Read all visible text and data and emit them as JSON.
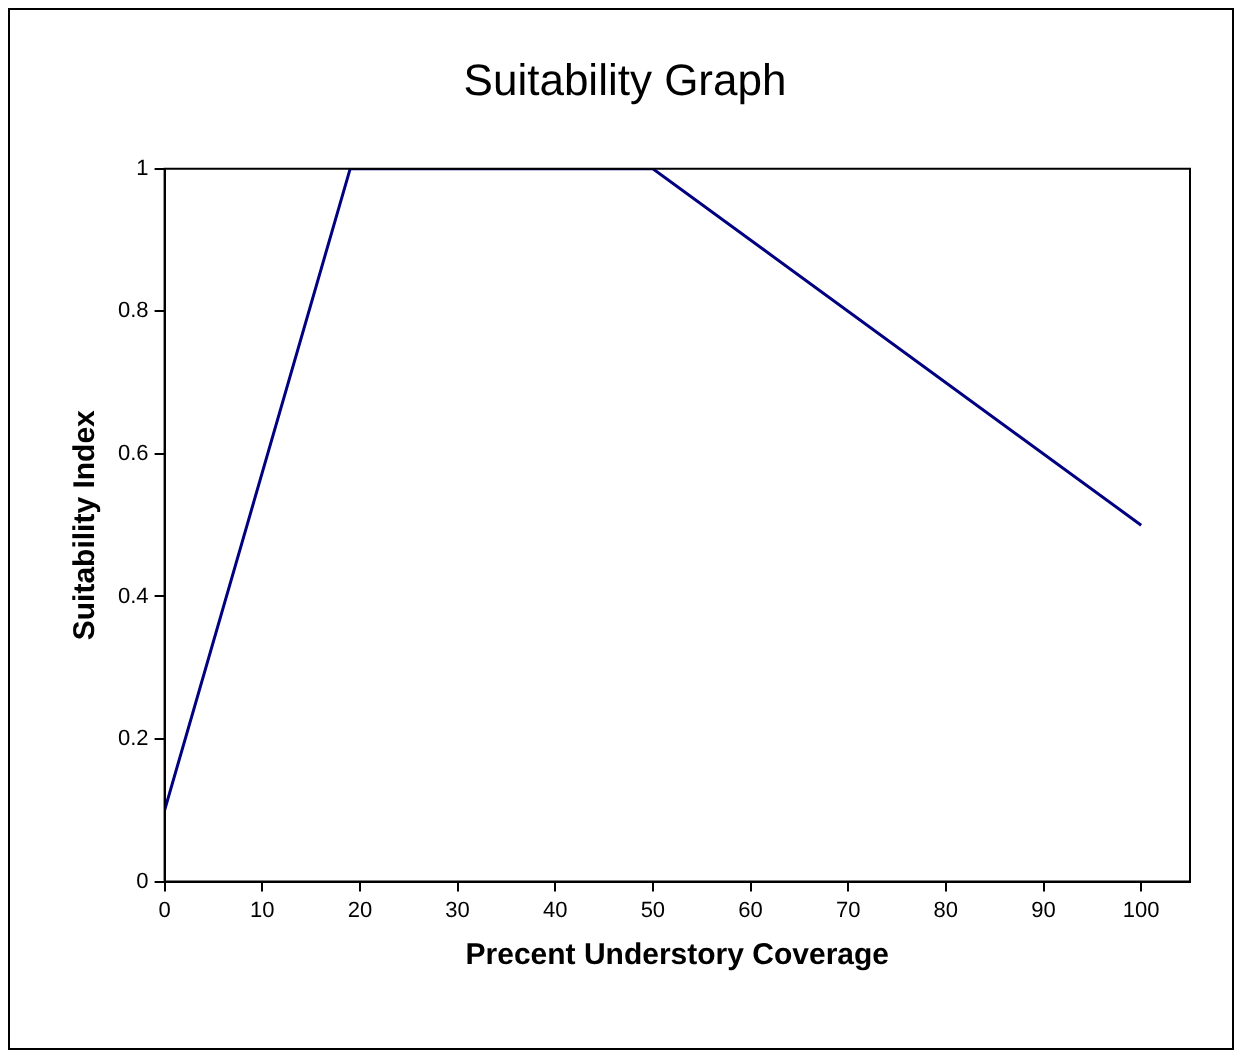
{
  "chart_data": {
    "type": "line",
    "title": "Suitability Graph",
    "xlabel": "Precent Understory Coverage",
    "ylabel": "Suitability Index",
    "x": [
      0,
      19,
      50,
      100
    ],
    "series": [
      {
        "color": "#000080",
        "values": [
          0.1,
          1,
          1,
          0.5
        ]
      }
    ],
    "xlim": [
      0,
      105
    ],
    "xticks": [
      0,
      10,
      20,
      30,
      40,
      50,
      60,
      70,
      80,
      90,
      100
    ],
    "ylim": [
      0,
      1
    ],
    "yticks": [
      0,
      0.2,
      0.4,
      0.6,
      0.8,
      1
    ],
    "grid": false,
    "legend": false,
    "marker": "none",
    "line_style": "solid"
  }
}
